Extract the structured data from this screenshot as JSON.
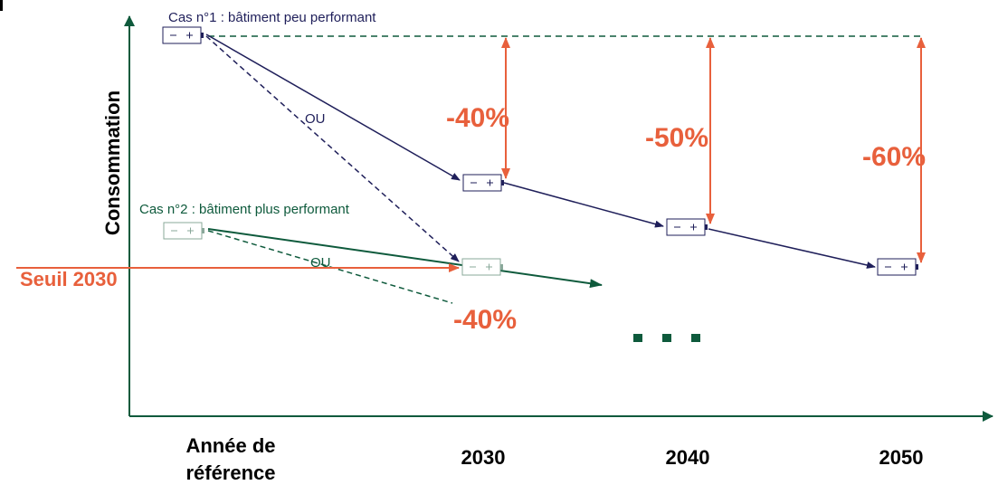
{
  "case1": "Cas n°1 : bâtiment peu performant",
  "case2": "Cas n°2 : bâtiment plus performant",
  "y_axis_label": "Consommation",
  "threshold_label": "Seuil 2030",
  "or_labels": [
    "OU",
    "OU"
  ],
  "reductions": [
    "-40%",
    "-50%",
    "-60%"
  ],
  "case2_reduction": "-40%",
  "x_labels": {
    "reference": [
      "Année de",
      "référence"
    ],
    "years": [
      "2030",
      "2040",
      "2050"
    ]
  }
}
